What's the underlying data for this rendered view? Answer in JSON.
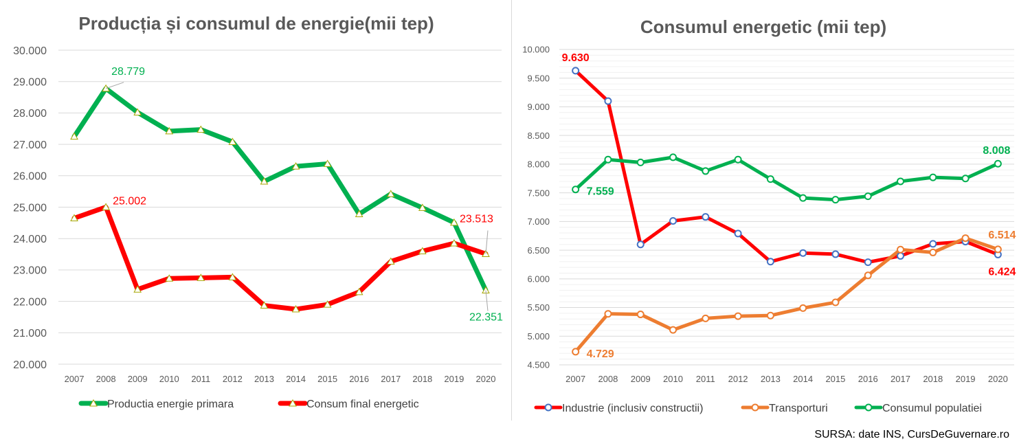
{
  "source": "SURSA: date INS, CursDeGuvernare.ro",
  "chart_data": [
    {
      "type": "line",
      "title": "Producția și consumul de energie(mii tep)",
      "x": [
        "2007",
        "2008",
        "2009",
        "2010",
        "2011",
        "2012",
        "2013",
        "2014",
        "2015",
        "2016",
        "2017",
        "2018",
        "2019",
        "2020"
      ],
      "ylim": [
        20000,
        30000
      ],
      "ytick_labels": [
        "20.000",
        "21.000",
        "22.000",
        "23.000",
        "24.000",
        "25.000",
        "26.000",
        "27.000",
        "28.000",
        "29.000",
        "30.000"
      ],
      "grid": true,
      "legend_position": "bottom",
      "series": [
        {
          "name": "Productia energie primara",
          "color": "#00b050",
          "marker": "triangle",
          "values": [
            27250,
            28779,
            28020,
            27420,
            27470,
            27080,
            25820,
            26300,
            26380,
            24780,
            25420,
            24980,
            24510,
            22351
          ],
          "labels": [
            {
              "index": 1,
              "text": "28.779"
            },
            {
              "index": 13,
              "text": "22.351"
            }
          ]
        },
        {
          "name": "Consum final energetic",
          "color": "#ff0000",
          "marker": "triangle",
          "values": [
            24650,
            25002,
            22380,
            22730,
            22750,
            22770,
            21870,
            21750,
            21900,
            22300,
            23270,
            23600,
            23850,
            23513
          ],
          "labels": [
            {
              "index": 1,
              "text": "25.002"
            },
            {
              "index": 13,
              "text": "23.513"
            }
          ]
        }
      ]
    },
    {
      "type": "line",
      "title": "Consumul energetic (mii tep)",
      "x": [
        "2007",
        "2008",
        "2009",
        "2010",
        "2011",
        "2012",
        "2013",
        "2014",
        "2015",
        "2016",
        "2017",
        "2018",
        "2019",
        "2020"
      ],
      "ylim": [
        4500,
        10000
      ],
      "ytick_labels": [
        "4.500",
        "5.000",
        "5.500",
        "6.000",
        "6.500",
        "7.000",
        "7.500",
        "8.000",
        "8.500",
        "9.000",
        "9.500",
        "10.000"
      ],
      "grid": true,
      "legend_position": "bottom",
      "series": [
        {
          "name": "Industrie (inclusiv constructii)",
          "color": "#ff0000",
          "marker_color": "#4472c4",
          "values": [
            9630,
            9100,
            6600,
            7010,
            7080,
            6790,
            6300,
            6450,
            6430,
            6290,
            6400,
            6610,
            6650,
            6424
          ],
          "labels": [
            {
              "index": 0,
              "text": "9.630"
            },
            {
              "index": 13,
              "text": "6.424"
            }
          ]
        },
        {
          "name": "Transporturi",
          "color": "#ed7d31",
          "marker_color": "#ed7d31",
          "values": [
            4729,
            5390,
            5380,
            5110,
            5310,
            5350,
            5360,
            5490,
            5590,
            6060,
            6510,
            6460,
            6710,
            6514
          ],
          "labels": [
            {
              "index": 0,
              "text": "4.729"
            },
            {
              "index": 13,
              "text": "6.514"
            }
          ]
        },
        {
          "name": "Consumul populatiei",
          "color": "#00b050",
          "marker_color": "#00b050",
          "values": [
            7559,
            8080,
            8030,
            8120,
            7880,
            8080,
            7740,
            7410,
            7380,
            7440,
            7700,
            7770,
            7750,
            8008
          ],
          "labels": [
            {
              "index": 0,
              "text": "7.559"
            },
            {
              "index": 13,
              "text": "8.008"
            }
          ]
        }
      ]
    }
  ]
}
